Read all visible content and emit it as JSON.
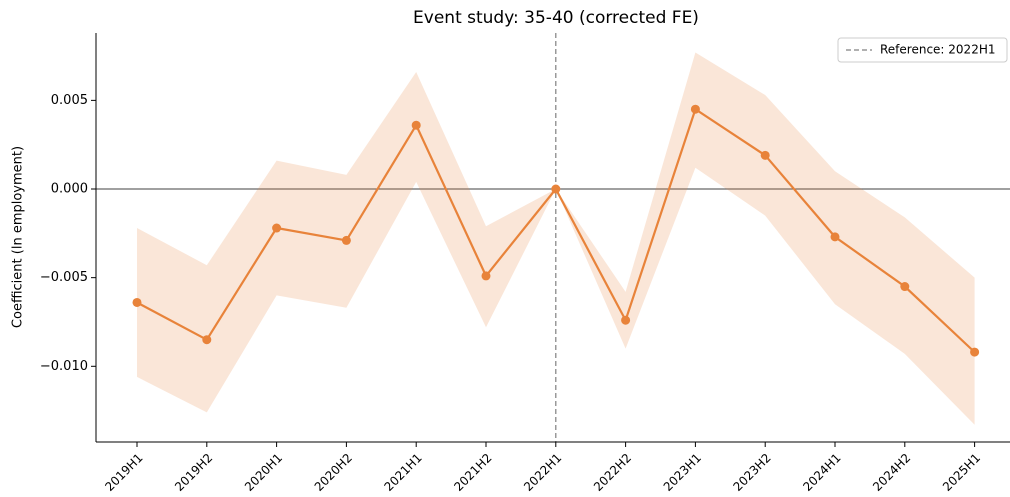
{
  "chart_data": {
    "type": "line",
    "title": "Event study: 35-40 (corrected FE)",
    "y_label": "Coefficient (ln employment)",
    "categories": [
      "2019H1",
      "2019H2",
      "2020H1",
      "2020H2",
      "2021H1",
      "2021H2",
      "2022H1",
      "2022H2",
      "2023H1",
      "2023H2",
      "2024H1",
      "2024H2",
      "2025H1"
    ],
    "series": [
      {
        "color": "#e8833a",
        "values": [
          -0.0064,
          -0.0085,
          -0.0022,
          -0.0029,
          0.0036,
          -0.0049,
          0,
          -0.0074,
          0.0045,
          0.0019,
          -0.0027,
          -0.0055,
          -0.0092
        ],
        "upper": [
          -0.0022,
          -0.0043,
          0.0016,
          0.0008,
          0.0066,
          -0.0021,
          0,
          -0.0058,
          0.0077,
          0.0053,
          0.001,
          -0.0016,
          -0.005
        ],
        "lower": [
          -0.0106,
          -0.0126,
          -0.006,
          -0.0067,
          0.0004,
          -0.0078,
          0,
          -0.009,
          0.0012,
          -0.0015,
          -0.0065,
          -0.0093,
          -0.0133
        ]
      }
    ],
    "reference": {
      "category_index": 6,
      "label": "Reference: 2022H1",
      "color": "#808080"
    },
    "ylim": [
      -0.01427,
      0.0088
    ],
    "yticks": [
      {
        "value": 0.005,
        "label": "0.005"
      },
      {
        "value": 0,
        "label": "0.000"
      },
      {
        "value": -0.005,
        "label": "−0.005"
      },
      {
        "value": -0.01,
        "label": "−0.010"
      }
    ],
    "legend": "upper right"
  }
}
